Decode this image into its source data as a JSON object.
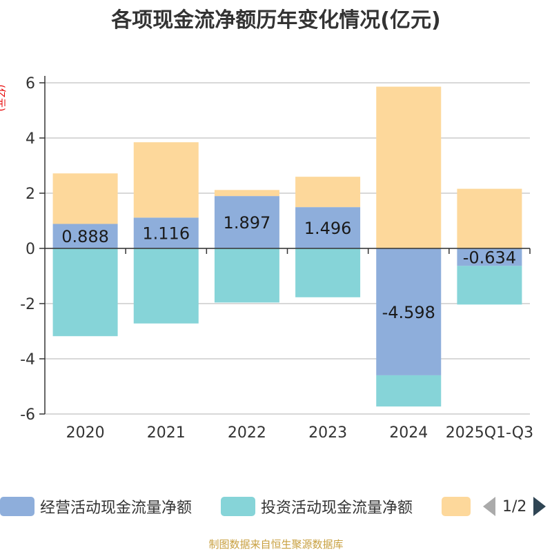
{
  "chart_data": {
    "type": "bar",
    "stacked": true,
    "title": "各项现金流净额历年变化情况(亿元)",
    "ylabel": "(亿元)",
    "categories": [
      "2020",
      "2021",
      "2022",
      "2023",
      "2024",
      "2025Q1-Q3"
    ],
    "ylim": [
      -6,
      6
    ],
    "yticks": [
      -6,
      -4,
      -2,
      0,
      2,
      4,
      6
    ],
    "grid": true,
    "series": [
      {
        "name": "经营活动现金流量净额",
        "color": "#8eaedb",
        "values": [
          0.888,
          1.116,
          1.897,
          1.496,
          -4.598,
          -0.634
        ],
        "labels": [
          "0.888",
          "1.116",
          "1.897",
          "1.496",
          "-4.598",
          "-0.634"
        ]
      },
      {
        "name": "投资活动现金流量净额",
        "color": "#86d4d8",
        "values": [
          -3.18,
          -2.72,
          -1.96,
          -1.77,
          -1.13,
          -1.4
        ]
      },
      {
        "name": "",
        "color": "#fdd89b",
        "values": [
          1.83,
          2.73,
          0.22,
          1.1,
          5.86,
          2.16
        ]
      }
    ]
  },
  "legend": {
    "items": [
      {
        "label": "经营活动现金流量净额",
        "color": "#8eaedb"
      },
      {
        "label": "投资活动现金流量净额",
        "color": "#86d4d8"
      },
      {
        "label": "",
        "color": "#fdd89b"
      }
    ],
    "page_text": "1/2"
  },
  "source": "制图数据来自恒生聚源数据库"
}
